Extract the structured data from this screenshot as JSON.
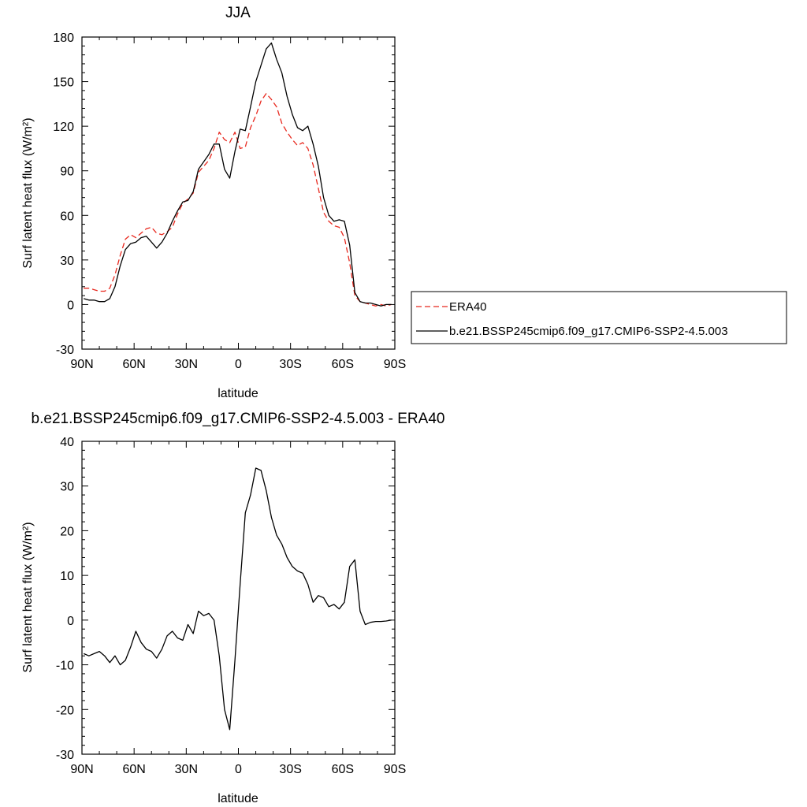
{
  "chart_data": [
    {
      "type": "line",
      "title": "JJA",
      "xlabel": "latitude",
      "ylabel": "Surf latent heat flux (W/m²)",
      "xlim": [
        90,
        -90
      ],
      "ylim": [
        -30,
        180
      ],
      "x_tick_labels": [
        "90N",
        "60N",
        "30N",
        "0",
        "30S",
        "60S",
        "90S"
      ],
      "y_tick_labels": [
        "-30",
        "0",
        "30",
        "60",
        "90",
        "120",
        "150",
        "180"
      ],
      "legend_position": "right",
      "series": [
        {
          "name": "ERA40",
          "color": "#e8281e",
          "dash": "dashed",
          "x": [
            89,
            86,
            83,
            80,
            77,
            74,
            71,
            68,
            65,
            62,
            59,
            56,
            53,
            50,
            47,
            44,
            41,
            38,
            35,
            32,
            29,
            26,
            23,
            20,
            17,
            14,
            11,
            8,
            5,
            2,
            -1,
            -4,
            -7,
            -10,
            -13,
            -16,
            -19,
            -22,
            -25,
            -28,
            -31,
            -34,
            -37,
            -40,
            -43,
            -46,
            -49,
            -52,
            -55,
            -58,
            -61,
            -64,
            -67,
            -70,
            -73,
            -76,
            -79,
            -82,
            -85,
            -88
          ],
          "y": [
            11,
            11,
            10,
            9,
            9,
            11,
            20,
            33,
            44,
            47,
            45,
            48,
            51,
            52,
            48,
            47,
            49,
            52,
            61,
            68,
            71,
            75,
            89,
            93,
            97,
            105,
            116,
            111,
            109,
            116,
            105,
            106,
            119,
            127,
            137,
            142,
            138,
            133,
            122,
            116,
            111,
            107,
            109,
            105,
            94,
            78,
            62,
            56,
            53,
            52,
            45,
            28,
            6,
            2,
            1,
            0,
            -1,
            0,
            -1,
            0
          ]
        },
        {
          "name": "b.e21.BSSP245cmip6.f09_g17.CMIP6-SSP2-4.5.003",
          "color": "#000000",
          "dash": "solid",
          "x": [
            89,
            86,
            83,
            80,
            77,
            74,
            71,
            68,
            65,
            62,
            59,
            56,
            53,
            50,
            47,
            44,
            41,
            38,
            35,
            32,
            29,
            26,
            23,
            20,
            17,
            14,
            11,
            8,
            5,
            2,
            -1,
            -4,
            -7,
            -10,
            -13,
            -16,
            -19,
            -22,
            -25,
            -28,
            -31,
            -34,
            -37,
            -40,
            -43,
            -46,
            -49,
            -52,
            -55,
            -58,
            -61,
            -64,
            -67,
            -70,
            -73,
            -76,
            -79,
            -82,
            -85,
            -88
          ],
          "y": [
            4,
            3,
            3,
            2,
            2,
            4,
            12,
            26,
            37,
            41,
            42,
            45,
            46,
            42,
            38,
            42,
            48,
            56,
            63,
            69,
            70,
            76,
            91,
            96,
            101,
            108,
            108,
            91,
            85,
            103,
            118,
            117,
            133,
            150,
            161,
            172,
            176,
            165,
            156,
            140,
            128,
            119,
            117,
            120,
            108,
            93,
            72,
            60,
            56,
            57,
            56,
            40,
            8,
            2,
            1,
            1,
            0,
            -1,
            0,
            0
          ]
        }
      ]
    },
    {
      "type": "line",
      "title": "b.e21.BSSP245cmip6.f09_g17.CMIP6-SSP2-4.5.003 - ERA40",
      "xlabel": "latitude",
      "ylabel": "Surf latent heat flux (W/m²)",
      "xlim": [
        90,
        -90
      ],
      "ylim": [
        -30,
        40
      ],
      "x_tick_labels": [
        "90N",
        "60N",
        "30N",
        "0",
        "30S",
        "60S",
        "90S"
      ],
      "y_tick_labels": [
        "-30",
        "-20",
        "-10",
        "0",
        "10",
        "20",
        "30",
        "40"
      ],
      "series": [
        {
          "color": "#000000",
          "dash": "solid",
          "x": [
            89,
            86,
            83,
            80,
            77,
            74,
            71,
            68,
            65,
            62,
            59,
            56,
            53,
            50,
            47,
            44,
            41,
            38,
            35,
            32,
            29,
            26,
            23,
            20,
            17,
            14,
            11,
            8,
            5,
            2,
            -1,
            -4,
            -7,
            -10,
            -13,
            -16,
            -19,
            -22,
            -25,
            -28,
            -31,
            -34,
            -37,
            -40,
            -43,
            -46,
            -49,
            -52,
            -55,
            -58,
            -61,
            -64,
            -67,
            -70,
            -73,
            -76,
            -79,
            -82,
            -85,
            -88
          ],
          "y": [
            -7.5,
            -8,
            -7.5,
            -7,
            -8,
            -9.5,
            -8,
            -10,
            -9,
            -6,
            -2.5,
            -5,
            -6.5,
            -7,
            -8.5,
            -6.5,
            -3.5,
            -2.5,
            -4,
            -4.5,
            -1,
            -3,
            2,
            1,
            1.5,
            0,
            -8,
            -20,
            -24.5,
            -9,
            8,
            24,
            28,
            34,
            33.5,
            29,
            23,
            19,
            17,
            14,
            12,
            11,
            10.5,
            8,
            4,
            5.5,
            5,
            3,
            3.5,
            2.5,
            4,
            12,
            13.5,
            2,
            -1,
            -0.5,
            -0.3,
            -0.3,
            -0.2,
            0
          ]
        }
      ]
    }
  ]
}
